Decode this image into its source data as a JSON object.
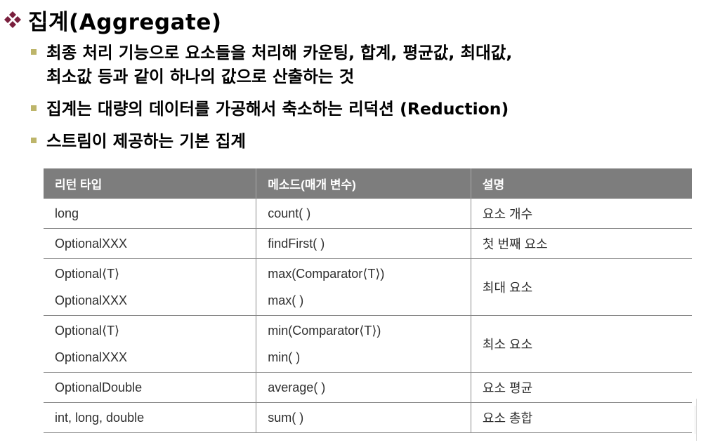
{
  "slide": {
    "title": "집계(Aggregate)",
    "bullets": [
      {
        "lines": [
          "최종 처리 기능으로 요소들을 처리해 카운팅, 합계, 평균값, 최대값,",
          "최소값 등과 같이 하나의 값으로 산출하는 것"
        ]
      },
      {
        "lines": [
          "집계는 대량의 데이터를 가공해서 축소하는 리덕션 (Reduction)"
        ]
      },
      {
        "lines": [
          "스트림이 제공하는 기본 집계"
        ]
      }
    ]
  },
  "table": {
    "headers": [
      "리턴 타입",
      "메소드(매개 변수)",
      "설명"
    ],
    "rows": [
      {
        "return_types": [
          "long"
        ],
        "methods": [
          "count( )"
        ],
        "description": "요소 개수"
      },
      {
        "return_types": [
          "OptionalXXX"
        ],
        "methods": [
          "findFirst( )"
        ],
        "description": "첫 번째 요소"
      },
      {
        "return_types": [
          "Optional⟨T⟩",
          "OptionalXXX"
        ],
        "methods": [
          "max(Comparator⟨T⟩)",
          "max( )"
        ],
        "description": "최대 요소"
      },
      {
        "return_types": [
          "Optional⟨T⟩",
          "OptionalXXX"
        ],
        "methods": [
          "min(Comparator⟨T⟩)",
          "min( )"
        ],
        "description": "최소 요소"
      },
      {
        "return_types": [
          "OptionalDouble"
        ],
        "methods": [
          "average( )"
        ],
        "description": "요소 평균"
      },
      {
        "return_types": [
          "int, long, double"
        ],
        "methods": [
          "sum( )"
        ],
        "description": "요소 총합"
      }
    ]
  },
  "colors": {
    "title_bullet": "#7a1f3d",
    "sub_bullet": "#bdb56a",
    "header_bg": "#7d7d7d",
    "header_text": "#ffffff",
    "rule": "#8a8a8a"
  },
  "icons": {
    "title_bullet": "four-diamond-bullet-icon",
    "sub_bullet": "square-bullet-icon"
  }
}
